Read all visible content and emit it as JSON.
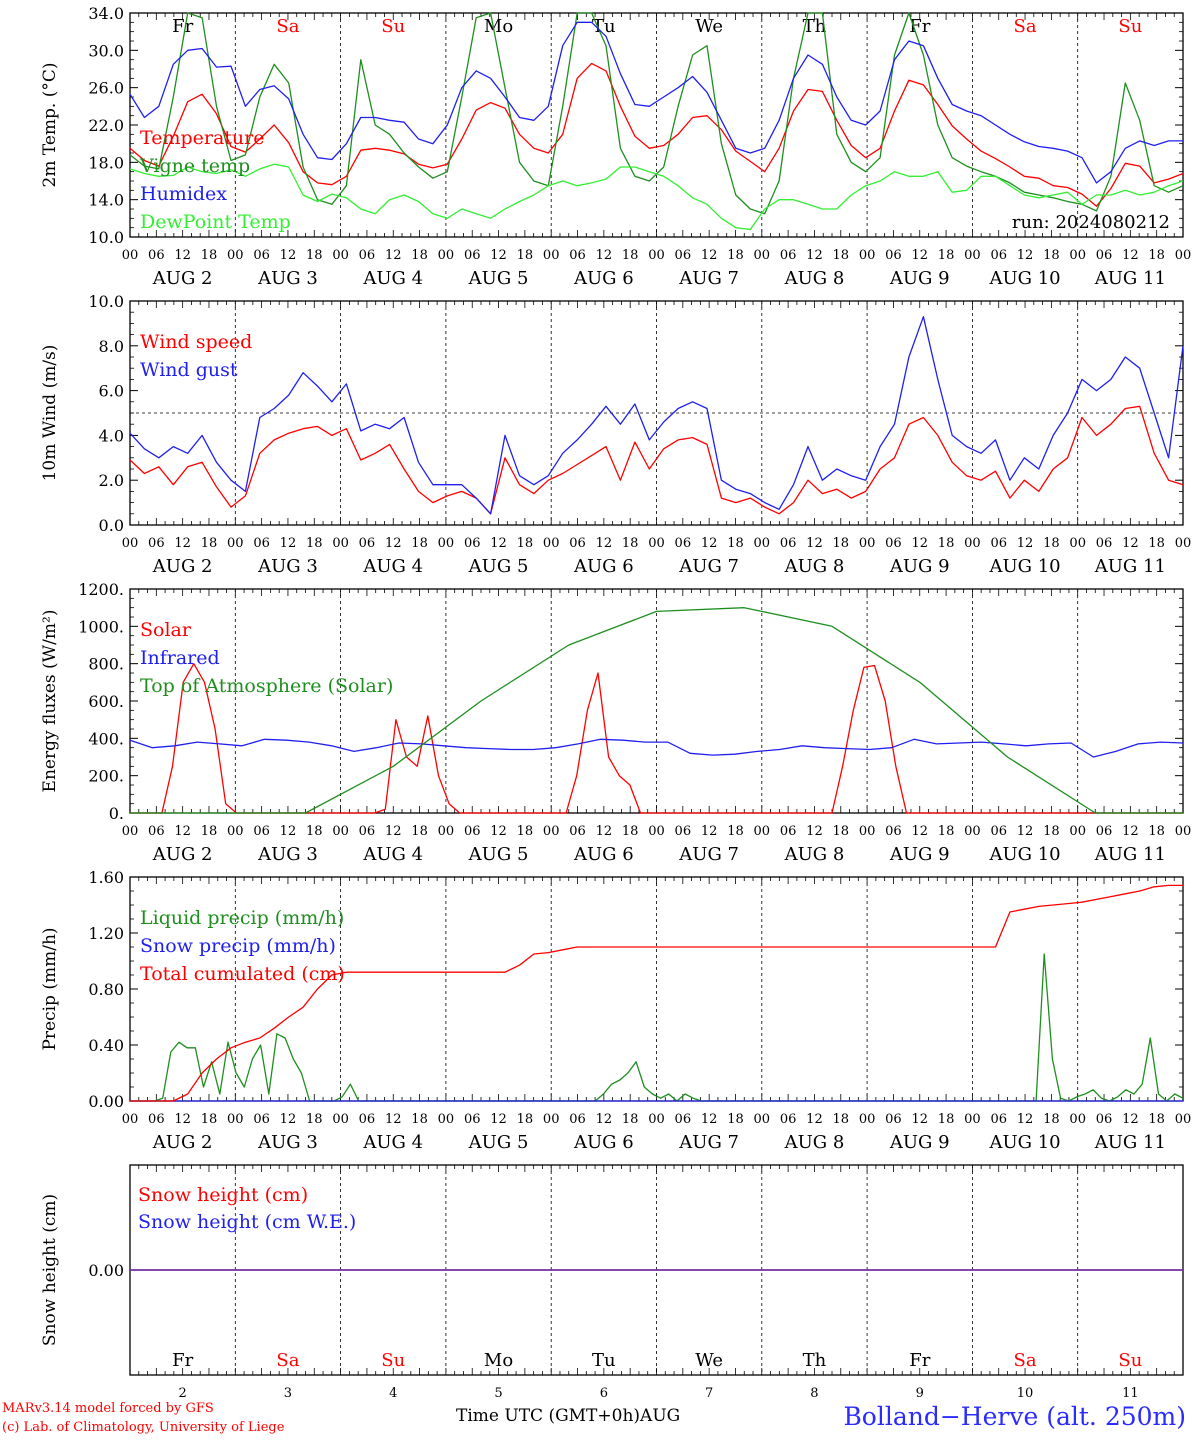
{
  "run_label": "run: 2024080212",
  "footer": {
    "credit_line1": "MARv3.14 model forced by GFS",
    "credit_line2": "(c) Lab. of Climatology, University of Liege",
    "x_axis_title": "Time UTC (GMT+0h)",
    "month_label": "AUG",
    "station": "Bolland−Herve (alt. 250m)"
  },
  "colors": {
    "red": "#ff0000",
    "blue": "#2020ee",
    "green": "#1e8f1e",
    "lightgreen": "#33ee33",
    "weekend": "#ff0000",
    "weekday": "#000000",
    "snow_line": "#7030a0"
  },
  "chart_data": [
    {
      "type": "line",
      "ylabel": "2m Temp. (°C)",
      "ylim": [
        10,
        34
      ],
      "yticks": [
        "10.0",
        "14.0",
        "18.0",
        "22.0",
        "26.0",
        "30.0",
        "34.0"
      ],
      "day_names": [
        "Fr",
        "Sa",
        "Su",
        "Mo",
        "Tu",
        "We",
        "Th",
        "Fr",
        "Sa",
        "Su"
      ],
      "weekend_flags": [
        false,
        true,
        true,
        false,
        false,
        false,
        false,
        false,
        true,
        true
      ],
      "date_labels": [
        "AUG  2",
        "AUG  3",
        "AUG  4",
        "AUG  5",
        "AUG  6",
        "AUG  7",
        "AUG  8",
        "AUG  9",
        "AUG 10",
        "AUG 11"
      ],
      "hour_labels": [
        "00",
        "06",
        "12",
        "18"
      ],
      "series": [
        {
          "name": "Temperature",
          "color": "red",
          "values": [
            19.5,
            18.2,
            17.6,
            20.8,
            24.5,
            25.3,
            23.2,
            19.7,
            19.1,
            20.5,
            22.0,
            20.1,
            17.0,
            15.8,
            15.6,
            16.5,
            19.3,
            19.5,
            19.3,
            18.9,
            17.8,
            17.4,
            17.8,
            20.5,
            23.6,
            24.4,
            23.8,
            21.0,
            19.5,
            19.0,
            21.0,
            27.0,
            28.6,
            27.8,
            24.0,
            20.8,
            19.5,
            19.8,
            21.0,
            22.8,
            23.0,
            21.5,
            19.2,
            18.1,
            17.0,
            19.5,
            23.5,
            25.8,
            25.6,
            22.5,
            19.8,
            18.5,
            19.5,
            23.5,
            26.8,
            26.3,
            24.2,
            21.9,
            20.5,
            19.2,
            18.4,
            17.5,
            16.5,
            16.3,
            15.5,
            15.3,
            14.6,
            13.3,
            15.2,
            17.9,
            17.6,
            15.8,
            16.2,
            16.8
          ]
        },
        {
          "name": "Vigne temp",
          "color": "green",
          "values": [
            18.8,
            17.6,
            17.3,
            25.0,
            34.0,
            33.5,
            24.0,
            18.2,
            18.8,
            25.0,
            28.5,
            26.5,
            17.5,
            14.0,
            13.5,
            15.5,
            29.0,
            22.0,
            21.0,
            19.0,
            17.5,
            16.3,
            17.0,
            25.0,
            33.5,
            34.0,
            26.0,
            18.0,
            16.0,
            15.5,
            24.0,
            34.0,
            34.0,
            30.5,
            19.5,
            16.5,
            16.0,
            17.5,
            24.0,
            29.5,
            30.5,
            20.0,
            14.5,
            13.0,
            12.5,
            16.0,
            27.0,
            34.0,
            34.0,
            21.0,
            18.0,
            17.0,
            18.5,
            29.5,
            34.0,
            29.5,
            22.0,
            18.5,
            17.6,
            17.0,
            16.5,
            15.8,
            14.8,
            14.5,
            14.2,
            13.8,
            13.5,
            12.8,
            16.5,
            26.5,
            22.5,
            15.5,
            14.8,
            15.5
          ]
        },
        {
          "name": "Humidex",
          "color": "blue",
          "values": [
            25.3,
            22.8,
            24.0,
            28.5,
            30.0,
            30.2,
            28.2,
            28.3,
            24.0,
            25.8,
            26.2,
            24.8,
            21.0,
            18.5,
            18.3,
            20.0,
            22.8,
            22.8,
            22.5,
            22.3,
            20.5,
            20.0,
            22.0,
            26.0,
            27.8,
            27.0,
            25.0,
            22.8,
            22.5,
            24.0,
            30.5,
            33.0,
            33.0,
            31.5,
            27.5,
            24.2,
            24.0,
            25.0,
            26.0,
            27.2,
            25.5,
            22.5,
            19.5,
            19.0,
            19.5,
            22.5,
            27.0,
            29.5,
            28.5,
            25.0,
            22.5,
            22.0,
            23.5,
            29.0,
            31.0,
            30.5,
            27.0,
            24.2,
            23.5,
            23.0,
            22.0,
            21.0,
            20.2,
            19.7,
            19.5,
            19.2,
            18.5,
            15.8,
            17.0,
            19.5,
            20.3,
            19.8,
            20.3,
            20.3
          ]
        },
        {
          "name": "DewPoint Temp",
          "color": "lightgreen",
          "values": [
            17.3,
            16.8,
            16.5,
            16.6,
            17.5,
            17.0,
            16.8,
            17.2,
            16.5,
            17.3,
            17.8,
            17.5,
            14.5,
            13.8,
            14.6,
            14.2,
            13.0,
            12.5,
            14.0,
            14.5,
            13.8,
            12.5,
            12.0,
            13.0,
            12.5,
            12.0,
            13.0,
            13.8,
            14.5,
            15.5,
            16.0,
            15.5,
            15.8,
            16.2,
            17.5,
            17.5,
            17.0,
            16.5,
            15.5,
            14.2,
            13.5,
            12.0,
            11.0,
            10.8,
            13.0,
            14.0,
            14.0,
            13.5,
            13.0,
            13.0,
            14.5,
            15.5,
            16.0,
            17.0,
            16.5,
            16.5,
            17.0,
            14.8,
            15.0,
            16.5,
            16.5,
            15.5,
            14.5,
            14.2,
            14.5,
            14.8,
            13.5,
            14.5,
            14.5,
            15.0,
            14.5,
            14.8,
            15.5,
            16.0
          ]
        }
      ]
    },
    {
      "type": "line",
      "ylabel": "10m Wind (m/s)",
      "ylim": [
        0,
        10
      ],
      "yticks": [
        "0.0",
        "2.0",
        "4.0",
        "6.0",
        "8.0",
        "10.0"
      ],
      "reference_line": 5,
      "hour_labels": [
        "00",
        "06",
        "12",
        "18"
      ],
      "date_labels": [
        "AUG  2",
        "AUG  3",
        "AUG  4",
        "AUG  5",
        "AUG  6",
        "AUG  7",
        "AUG  8",
        "AUG  9",
        "AUG 10",
        "AUG 11"
      ],
      "series": [
        {
          "name": "Wind speed",
          "color": "red",
          "values": [
            2.9,
            2.3,
            2.6,
            1.8,
            2.6,
            2.8,
            1.7,
            0.8,
            1.3,
            3.2,
            3.8,
            4.1,
            4.3,
            4.4,
            4.0,
            4.3,
            2.9,
            3.2,
            3.6,
            2.5,
            1.5,
            1.0,
            1.3,
            1.5,
            1.2,
            0.5,
            3.0,
            1.8,
            1.4,
            2.0,
            2.3,
            2.7,
            3.1,
            3.5,
            2.0,
            3.7,
            2.5,
            3.4,
            3.8,
            3.9,
            3.6,
            1.2,
            1.0,
            1.2,
            0.8,
            0.5,
            1.0,
            2.0,
            1.4,
            1.6,
            1.2,
            1.5,
            2.5,
            3.0,
            4.5,
            4.8,
            4.0,
            2.8,
            2.2,
            2.0,
            2.4,
            1.2,
            2.0,
            1.5,
            2.5,
            3.0,
            4.8,
            4.0,
            4.5,
            5.2,
            5.3,
            3.2,
            2.0,
            1.8
          ]
        },
        {
          "name": "Wind gust",
          "color": "blue",
          "values": [
            4.1,
            3.4,
            3.0,
            3.5,
            3.2,
            4.0,
            2.8,
            2.0,
            1.5,
            4.8,
            5.2,
            5.8,
            6.8,
            6.2,
            5.5,
            6.3,
            4.2,
            4.5,
            4.3,
            4.8,
            2.8,
            1.8,
            1.8,
            1.8,
            1.2,
            0.5,
            4.0,
            2.2,
            1.8,
            2.2,
            3.2,
            3.8,
            4.5,
            5.3,
            4.5,
            5.4,
            3.8,
            4.6,
            5.2,
            5.5,
            5.2,
            2.0,
            1.6,
            1.4,
            1.0,
            0.7,
            1.8,
            3.5,
            2.0,
            2.5,
            2.2,
            2.0,
            3.5,
            4.5,
            7.5,
            9.3,
            6.5,
            4.0,
            3.5,
            3.2,
            3.8,
            2.0,
            3.0,
            2.5,
            4.0,
            5.0,
            6.5,
            6.0,
            6.5,
            7.5,
            7.0,
            5.0,
            3.0,
            8.0
          ]
        }
      ]
    },
    {
      "type": "line",
      "ylabel": "Energy fluxes (W/m²)",
      "ylim": [
        0,
        1200
      ],
      "yticks": [
        "0.",
        "200.",
        "400.",
        "600.",
        "800.",
        "1000.",
        "1200."
      ],
      "hour_labels": [
        "00",
        "06",
        "12",
        "18"
      ],
      "date_labels": [
        "AUG  2",
        "AUG  3",
        "AUG  4",
        "AUG  5",
        "AUG  6",
        "AUG  7",
        "AUG  8",
        "AUG  9",
        "AUG 10",
        "AUG 11"
      ],
      "series": [
        {
          "name": "Solar",
          "color": "red",
          "values": [
            0,
            0,
            0,
            0,
            250,
            700,
            800,
            700,
            450,
            50,
            0,
            0,
            0,
            0,
            0,
            0,
            0,
            0,
            0,
            0,
            0,
            0,
            0,
            0,
            20,
            500,
            300,
            250,
            520,
            200,
            50,
            0,
            0,
            0,
            0,
            0,
            0,
            0,
            0,
            0,
            0,
            0,
            200,
            550,
            750,
            300,
            200,
            150,
            0,
            0,
            0,
            0,
            0,
            0,
            0,
            0,
            0,
            0,
            0,
            0,
            0,
            0,
            0,
            0,
            0,
            0,
            0,
            250,
            550,
            780,
            790,
            600,
            250,
            0,
            0,
            0,
            0,
            0,
            0,
            0,
            0,
            0,
            0,
            0,
            0,
            0,
            0,
            0,
            0,
            0,
            0,
            0,
            0,
            0,
            0,
            0,
            0,
            0,
            0,
            0
          ]
        },
        {
          "name": "Infrared",
          "color": "blue",
          "values": [
            390,
            350,
            360,
            380,
            370,
            360,
            395,
            390,
            380,
            360,
            330,
            350,
            375,
            370,
            360,
            350,
            345,
            340,
            340,
            350,
            370,
            395,
            390,
            380,
            380,
            320,
            310,
            315,
            330,
            340,
            360,
            350,
            345,
            340,
            350,
            395,
            370,
            375,
            380,
            370,
            360,
            370,
            375,
            300,
            330,
            370,
            380,
            375
          ]
        },
        {
          "name": "Top of Atmosphere (Solar)",
          "color": "green",
          "values": [
            0,
            0,
            0,
            250,
            600,
            900,
            1080,
            1100,
            1000,
            700,
            300,
            0,
            0
          ]
        }
      ]
    },
    {
      "type": "line",
      "ylabel": "Precip (mm/h)",
      "ylim": [
        0,
        1.6
      ],
      "yticks": [
        "0.00",
        "0.40",
        "0.80",
        "1.20",
        "1.60"
      ],
      "hour_labels": [
        "00",
        "06",
        "12",
        "18"
      ],
      "date_labels": [
        "AUG  2",
        "AUG  3",
        "AUG  4",
        "AUG  5",
        "AUG  6",
        "AUG  7",
        "AUG  8",
        "AUG  9",
        "AUG 10",
        "AUG 11"
      ],
      "series": [
        {
          "name": "Liquid precip (mm/h)",
          "color": "green",
          "values": [
            0.0,
            0.0,
            0.0,
            0.0,
            0.02,
            0.35,
            0.42,
            0.38,
            0.38,
            0.1,
            0.28,
            0.05,
            0.42,
            0.2,
            0.1,
            0.3,
            0.4,
            0.05,
            0.48,
            0.45,
            0.3,
            0.2,
            0.0,
            0.0,
            0.0,
            0.0,
            0.03,
            0.12,
            0.0,
            0.0,
            0.0,
            0.0,
            0.0,
            0.0,
            0.0,
            0.0,
            0.0,
            0.0,
            0.0,
            0.0,
            0.0,
            0.0,
            0.0,
            0.0,
            0.0,
            0.0,
            0.0,
            0.0,
            0.0,
            0.0,
            0.0,
            0.0,
            0.0,
            0.0,
            0.0,
            0.0,
            0.0,
            0.0,
            0.05,
            0.12,
            0.15,
            0.2,
            0.28,
            0.1,
            0.05,
            0.02,
            0.05,
            0.0,
            0.05,
            0.02,
            0.0,
            0.0,
            0.0,
            0.0,
            0.0,
            0.0,
            0.0,
            0.0,
            0.0,
            0.0,
            0.0,
            0.0,
            0.0,
            0.0,
            0.0,
            0.0,
            0.0,
            0.0,
            0.0,
            0.0,
            0.0,
            0.0,
            0.0,
            0.0,
            0.0,
            0.0,
            0.0,
            0.0,
            0.0,
            0.0,
            0.0,
            0.0,
            0.0,
            0.0,
            0.0,
            0.0,
            0.0,
            0.0,
            0.0,
            0.0,
            0.0,
            0.0,
            1.05,
            0.3,
            0.02,
            0.0,
            0.03,
            0.05,
            0.08,
            0.02,
            0.0,
            0.03,
            0.08,
            0.05,
            0.12,
            0.45,
            0.05,
            0.0,
            0.05,
            0.02
          ]
        },
        {
          "name": "Snow precip (mm/h)",
          "color": "blue",
          "values": [
            0.0,
            0.0
          ]
        },
        {
          "name": "Total cumulated (cm)",
          "color": "red",
          "values": [
            0.0,
            0.0,
            0.0,
            0.0,
            0.05,
            0.2,
            0.3,
            0.38,
            0.42,
            0.45,
            0.52,
            0.6,
            0.67,
            0.8,
            0.9,
            0.92,
            0.92,
            0.92,
            0.92,
            0.92,
            0.92,
            0.92,
            0.92,
            0.92,
            0.92,
            0.92,
            0.92,
            0.97,
            1.05,
            1.06,
            1.08,
            1.1,
            1.1,
            1.1,
            1.1,
            1.1,
            1.1,
            1.1,
            1.1,
            1.1,
            1.1,
            1.1,
            1.1,
            1.1,
            1.1,
            1.1,
            1.1,
            1.1,
            1.1,
            1.1,
            1.1,
            1.1,
            1.1,
            1.1,
            1.1,
            1.1,
            1.1,
            1.1,
            1.1,
            1.1,
            1.1,
            1.35,
            1.37,
            1.39,
            1.4,
            1.41,
            1.42,
            1.44,
            1.46,
            1.48,
            1.5,
            1.53,
            1.54,
            1.54
          ]
        }
      ]
    },
    {
      "type": "line",
      "ylabel": "Snow height (cm)",
      "ylim": [
        -1,
        1
      ],
      "yticks": [
        "0.00"
      ],
      "day_names": [
        "Fr",
        "Sa",
        "Su",
        "Mo",
        "Tu",
        "We",
        "Th",
        "Fr",
        "Sa",
        "Su"
      ],
      "weekend_flags": [
        false,
        true,
        true,
        false,
        false,
        false,
        false,
        false,
        true,
        true
      ],
      "day_numbers": [
        "2",
        "3",
        "4",
        "5",
        "6",
        "7",
        "8",
        "9",
        "10",
        "11"
      ],
      "series": [
        {
          "name": "Snow height (cm)",
          "color": "red",
          "values": [
            0,
            0
          ]
        },
        {
          "name": "Snow height (cm W.E.)",
          "color": "blue",
          "values": [
            0,
            0
          ]
        }
      ]
    }
  ]
}
